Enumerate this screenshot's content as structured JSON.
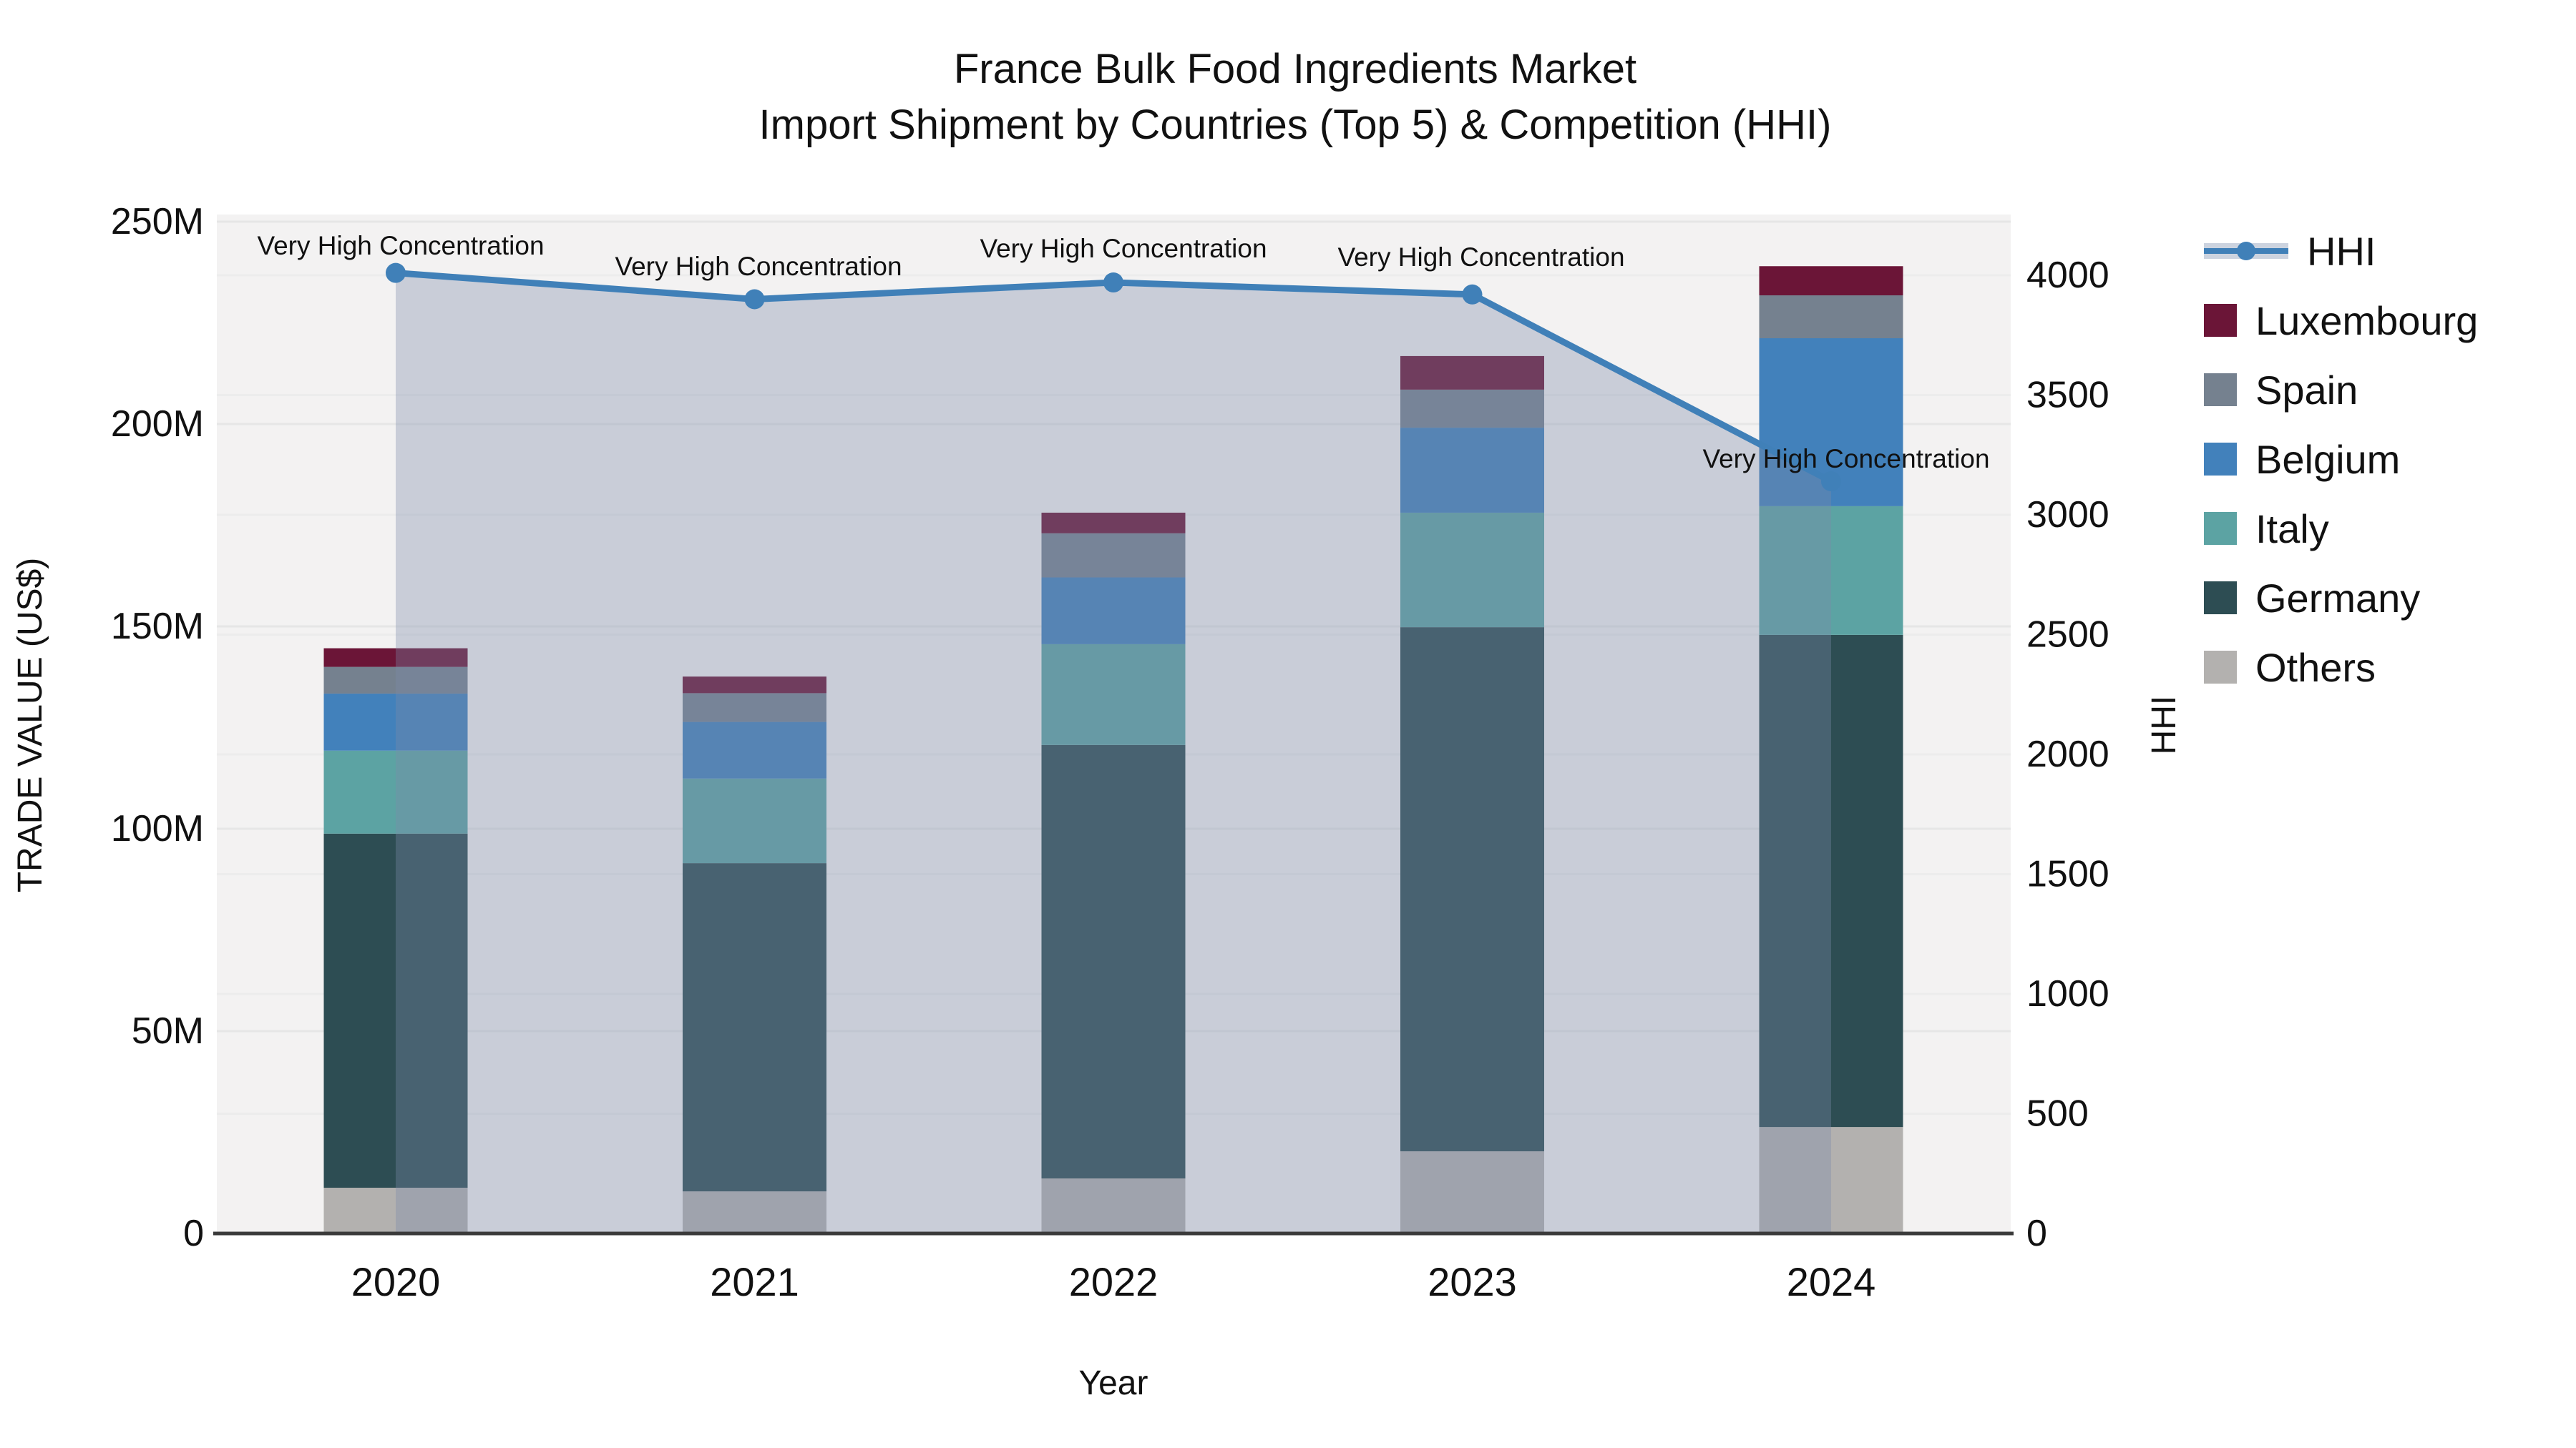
{
  "title": {
    "line1": "France Bulk Food Ingredients Market",
    "line2": "Import Shipment by Countries (Top 5) & Competition (HHI)"
  },
  "chart_data": {
    "type": "combo: stacked-bar + line",
    "title": "France Bulk Food Ingredients Market\nImport Shipment by Countries (Top 5) & Competition (HHI)",
    "categories": [
      "2020",
      "2021",
      "2022",
      "2023",
      "2024"
    ],
    "bar_unit": "trade value, US$ millions",
    "series": [
      {
        "name": "Others",
        "color": "#b3b1af",
        "values": [
          11.3,
          10.4,
          13.6,
          20.3,
          26.3
        ]
      },
      {
        "name": "Germany",
        "color": "#2d4d53",
        "values": [
          87.5,
          81.1,
          107.1,
          129.5,
          121.6
        ]
      },
      {
        "name": "Italy",
        "color": "#5ca3a3",
        "values": [
          20.5,
          20.9,
          24.9,
          28.3,
          31.8
        ]
      },
      {
        "name": "Belgium",
        "color": "#4281bb",
        "values": [
          14.1,
          14.0,
          16.5,
          21.0,
          41.5
        ]
      },
      {
        "name": "Spain",
        "color": "#75818f",
        "values": [
          6.6,
          7.1,
          10.9,
          9.4,
          10.6
        ]
      },
      {
        "name": "Luxembourg",
        "color": "#6b1537",
        "values": [
          4.6,
          4.1,
          5.1,
          8.3,
          7.2
        ]
      }
    ],
    "bar_totals": [
      144.6,
      137.6,
      178.1,
      216.8,
      239.0
    ],
    "line_series": {
      "name": "HHI",
      "color": "#4080b8",
      "area_fill": "rgba(123,137,168,0.35)",
      "values": [
        4010,
        3900,
        3970,
        3920,
        3140
      ]
    },
    "annotations": [
      {
        "label": "Very High Concentration",
        "x": 560,
        "y": 356
      },
      {
        "label": "Very High Concentration",
        "x": 1060,
        "y": 385
      },
      {
        "label": "Very High Concentration",
        "x": 1570,
        "y": 360
      },
      {
        "label": "Very High Concentration",
        "x": 2070,
        "y": 372
      },
      {
        "label": "Very High Concentration",
        "x": 2580,
        "y": 654
      }
    ],
    "left_axis": {
      "title": "TRADE VALUE (US$)",
      "tick_labels": [
        "0",
        "50M",
        "100M",
        "150M",
        "200M",
        "250M"
      ],
      "tick_values": [
        0,
        50,
        100,
        150,
        200,
        250
      ],
      "range": [
        0,
        251
      ]
    },
    "right_axis": {
      "title": "HHI",
      "tick_values": [
        0,
        500,
        1000,
        1500,
        2000,
        2500,
        3000,
        3500,
        4000
      ],
      "range": [
        0,
        4245
      ]
    },
    "x_axis": {
      "title": "Year"
    },
    "legend": [
      {
        "label": "HHI",
        "type": "line"
      },
      {
        "label": "Luxembourg",
        "type": "swatch",
        "color": "#6b1537"
      },
      {
        "label": "Spain",
        "type": "swatch",
        "color": "#75818f"
      },
      {
        "label": "Belgium",
        "type": "swatch",
        "color": "#4281bb"
      },
      {
        "label": "Italy",
        "type": "swatch",
        "color": "#5ca3a3"
      },
      {
        "label": "Germany",
        "type": "swatch",
        "color": "#2d4d53"
      },
      {
        "label": "Others",
        "type": "swatch",
        "color": "#b3b1af"
      }
    ],
    "layout": {
      "grid": true,
      "legend_position": "right",
      "plot_bg": "#f3f2f2",
      "grid_color": "#e6e6e6",
      "spine_color": "#3a3a3a"
    }
  }
}
